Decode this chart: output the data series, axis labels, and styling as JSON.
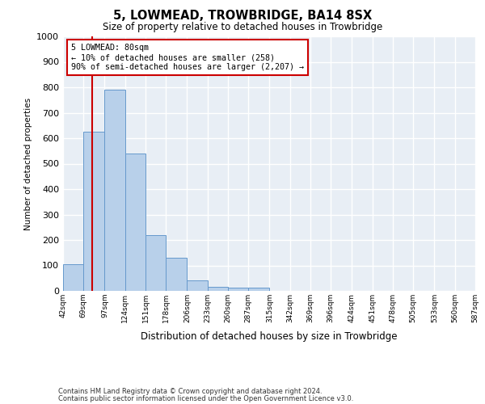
{
  "title": "5, LOWMEAD, TROWBRIDGE, BA14 8SX",
  "subtitle": "Size of property relative to detached houses in Trowbridge",
  "xlabel": "Distribution of detached houses by size in Trowbridge",
  "ylabel": "Number of detached properties",
  "bar_values": [
    105,
    625,
    790,
    540,
    220,
    130,
    42,
    17,
    12,
    12,
    0,
    0,
    0,
    0,
    0,
    0,
    0,
    0,
    0,
    0
  ],
  "bin_labels": [
    "42sqm",
    "69sqm",
    "97sqm",
    "124sqm",
    "151sqm",
    "178sqm",
    "206sqm",
    "233sqm",
    "260sqm",
    "287sqm",
    "315sqm",
    "342sqm",
    "369sqm",
    "396sqm",
    "424sqm",
    "451sqm",
    "478sqm",
    "505sqm",
    "533sqm",
    "560sqm",
    "587sqm"
  ],
  "bin_edges": [
    42,
    69,
    97,
    124,
    151,
    178,
    206,
    233,
    260,
    287,
    315,
    342,
    369,
    396,
    424,
    451,
    478,
    505,
    533,
    560,
    587
  ],
  "bar_color": "#b8d0ea",
  "bar_edge_color": "#6699cc",
  "vline_x": 80,
  "vline_color": "#cc0000",
  "ylim": [
    0,
    1000
  ],
  "yticks": [
    0,
    100,
    200,
    300,
    400,
    500,
    600,
    700,
    800,
    900,
    1000
  ],
  "annotation_text": "5 LOWMEAD: 80sqm\n← 10% of detached houses are smaller (258)\n90% of semi-detached houses are larger (2,207) →",
  "annotation_box_color": "#cc0000",
  "footnote1": "Contains HM Land Registry data © Crown copyright and database right 2024.",
  "footnote2": "Contains public sector information licensed under the Open Government Licence v3.0.",
  "bg_color": "#e8eef5",
  "grid_color": "#ffffff"
}
